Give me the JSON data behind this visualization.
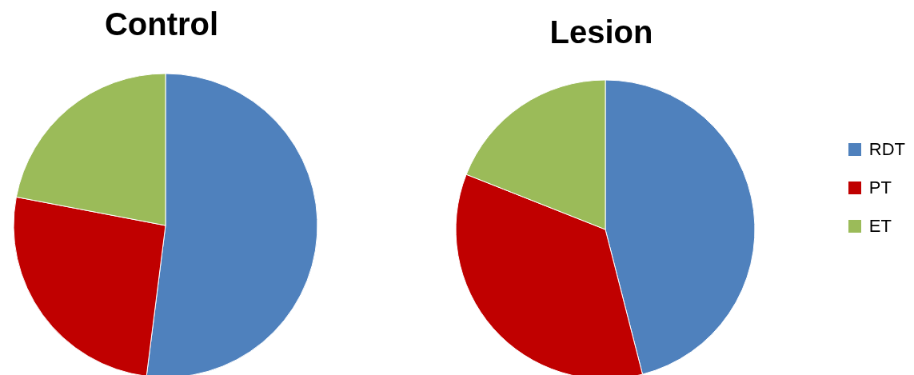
{
  "chart_data": [
    {
      "type": "pie",
      "title": "Control",
      "categories": [
        null,
        null,
        null
      ],
      "values": [
        52,
        26,
        22
      ],
      "colors": [
        "#4f81bd",
        "#c00000",
        "#9bbb59"
      ],
      "legend": false
    },
    {
      "type": "pie",
      "title": "Lesion",
      "categories": [
        "RDT",
        "PT",
        "ET"
      ],
      "values": [
        46,
        35,
        19
      ],
      "colors": [
        "#4f81bd",
        "#c00000",
        "#9bbb59"
      ],
      "legend": "right"
    }
  ]
}
